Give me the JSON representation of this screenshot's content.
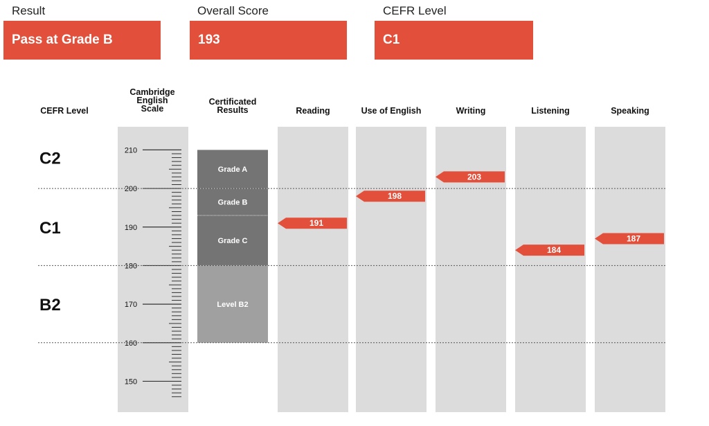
{
  "summary": {
    "result_label": "Result",
    "result_value": "Pass at Grade B",
    "score_label": "Overall Score",
    "score_value": "193",
    "cefr_label": "CEFR Level",
    "cefr_value": "C1"
  },
  "colors": {
    "accent": "#e2503c",
    "column_bg": "#dcdcdc",
    "band_dark": "#747474",
    "band_light": "#a0a0a0"
  },
  "chart_data": {
    "type": "bar",
    "headers": {
      "cefr_level": "CEFR Level",
      "scale": [
        "Cambridge",
        "English",
        "Scale"
      ],
      "certificated": [
        "Certificated",
        "Results"
      ]
    },
    "ylim": [
      142,
      216
    ],
    "scale_ticks": [
      "210",
      "200",
      "190",
      "180",
      "170",
      "160",
      "150"
    ],
    "cefr_levels": [
      {
        "name": "C2",
        "from": 200,
        "to": 216
      },
      {
        "name": "C1",
        "from": 180,
        "to": 200
      },
      {
        "name": "B2",
        "from": 160,
        "to": 180
      }
    ],
    "certificated_bands": [
      {
        "label": "Grade A",
        "from": 200,
        "to": 210,
        "shade": "dark"
      },
      {
        "label": "Grade B",
        "from": 193,
        "to": 200,
        "shade": "dark"
      },
      {
        "label": "Grade C",
        "from": 180,
        "to": 193,
        "shade": "dark"
      },
      {
        "label": "Level B2",
        "from": 160,
        "to": 180,
        "shade": "light"
      }
    ],
    "categories": [
      "Reading",
      "Use of English",
      "Writing",
      "Listening",
      "Speaking"
    ],
    "values": [
      191,
      198,
      203,
      184,
      187
    ]
  }
}
